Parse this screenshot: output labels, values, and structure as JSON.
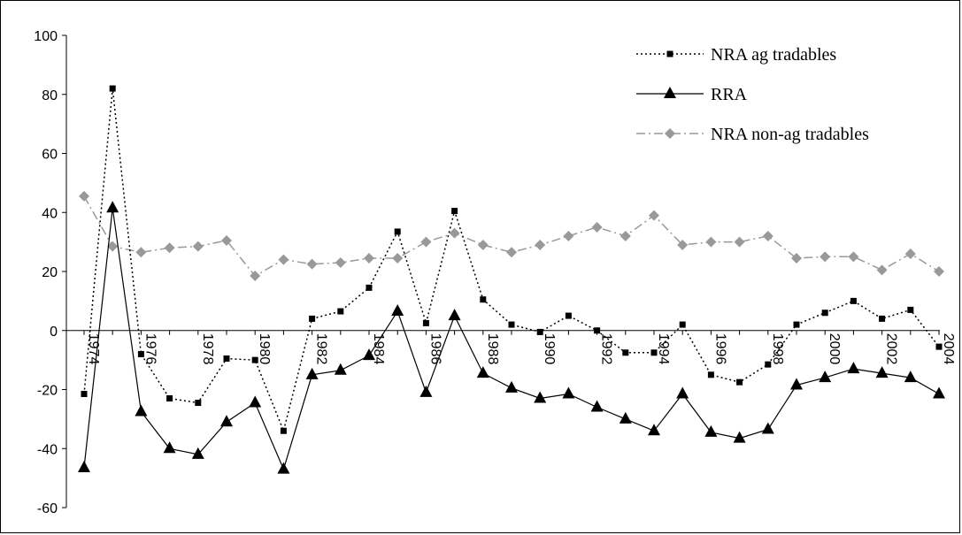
{
  "chart_data": {
    "type": "line",
    "ylim": [
      -60,
      100
    ],
    "yticks": [
      "100",
      "80",
      "60",
      "40",
      "20",
      "0",
      "-20",
      "-40",
      "-60"
    ],
    "x": [
      1974,
      1975,
      1976,
      1977,
      1978,
      1979,
      1980,
      1981,
      1982,
      1983,
      1984,
      1985,
      1986,
      1987,
      1988,
      1989,
      1990,
      1991,
      1992,
      1993,
      1994,
      1995,
      1996,
      1997,
      1998,
      1999,
      2000,
      2001,
      2002,
      2003,
      2004
    ],
    "xticks": [
      "1974",
      "1976",
      "1978",
      "1980",
      "1982",
      "1984",
      "1986",
      "1988",
      "1990",
      "1992",
      "1994",
      "1996",
      "1998",
      "2000",
      "2002",
      "2004"
    ],
    "legend_position": "top-right",
    "series": [
      {
        "name": "NRA ag tradables",
        "color": "#000000",
        "line_style": "dotted",
        "marker": "square",
        "values": [
          -21.5,
          82,
          -8,
          -23,
          -24.5,
          -9.5,
          -10,
          -34,
          4,
          6.5,
          14.5,
          33.5,
          2.5,
          40.5,
          10.5,
          2,
          -0.5,
          5,
          0,
          -7.5,
          -7.5,
          2,
          -15,
          -17.5,
          -11.5,
          2,
          6,
          10,
          4,
          7,
          -5.5
        ]
      },
      {
        "name": "RRA",
        "color": "#000000",
        "line_style": "solid",
        "marker": "triangle",
        "values": [
          -46.5,
          41.5,
          -27.5,
          -40,
          -42,
          -31,
          -24.5,
          -47,
          -15,
          -13.5,
          -8.5,
          6.5,
          -21,
          5,
          -14.5,
          -19.5,
          -23,
          -21.5,
          -26,
          -30,
          -34,
          -21.5,
          -34.5,
          -36.5,
          -33.5,
          -18.5,
          -16,
          -13,
          -14.5,
          -16,
          -21.5
        ]
      },
      {
        "name": "NRA non-ag tradables",
        "color": "#999999",
        "line_style": "dash-dot",
        "marker": "diamond",
        "values": [
          45.5,
          28.5,
          26.5,
          28,
          28.5,
          30.5,
          18.5,
          24,
          22.5,
          23,
          24.5,
          24.5,
          30,
          33,
          29,
          26.5,
          29,
          32,
          35,
          32,
          39,
          29,
          30,
          30,
          32,
          24.5,
          25,
          25,
          20.5,
          26,
          20
        ]
      }
    ]
  }
}
